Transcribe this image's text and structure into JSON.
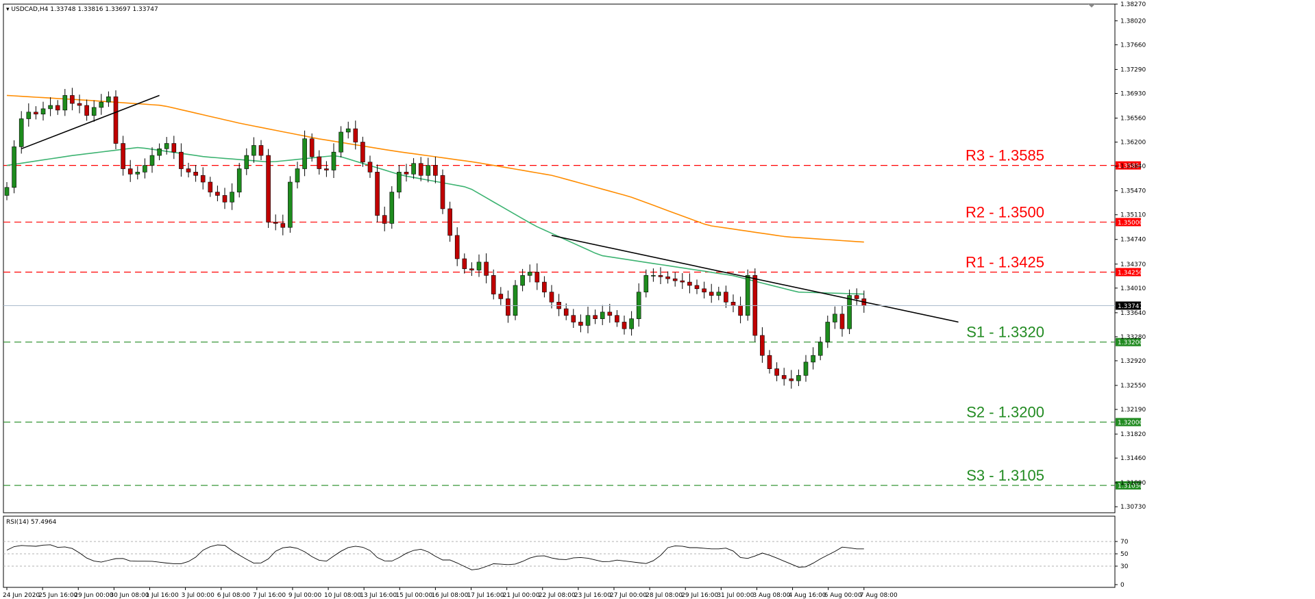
{
  "header": {
    "symbol": "USDCAD,H4",
    "ohlc": "1.33748 1.33816 1.33697 1.33747"
  },
  "rsi_header": "RSI(14) 57.4964",
  "current_price_label": "1.33747",
  "colors": {
    "bull": "#1e8c1e",
    "bear": "#c00000",
    "resistance": "#ff0000",
    "support": "#228b22",
    "ma_fast": "#3cb371",
    "ma_slow": "#ff8c00",
    "trendline": "#000000",
    "current": "#aabbcc"
  },
  "chart_data": [
    {
      "type": "candlestick",
      "title": "",
      "ylim": [
        1.3064,
        1.3827
      ],
      "y_ticks": [
        "1.38270",
        "1.38020",
        "1.37660",
        "1.37290",
        "1.36930",
        "1.36560",
        "1.36200",
        "1.35840",
        "1.35470",
        "1.35110",
        "1.34740",
        "1.34370",
        "1.34010",
        "1.33640",
        "1.33280",
        "1.32920",
        "1.32550",
        "1.32190",
        "1.31820",
        "1.31460",
        "1.31090",
        "1.30730"
      ],
      "x_ticks": [
        "24 Jun 2020",
        "25 Jun 16:00",
        "29 Jun 00:00",
        "30 Jun 08:00",
        "1 Jul 16:00",
        "3 Jul 00:00",
        "6 Jul 08:00",
        "7 Jul 16:00",
        "9 Jul 00:00",
        "10 Jul 08:00",
        "13 Jul 16:00",
        "15 Jul 00:00",
        "16 Jul 08:00",
        "17 Jul 16:00",
        "21 Jul 00:00",
        "22 Jul 08:00",
        "23 Jul 16:00",
        "27 Jul 00:00",
        "28 Jul 08:00",
        "29 Jul 16:00",
        "31 Jul 00:00",
        "3 Aug 08:00",
        "4 Aug 16:00",
        "6 Aug 00:00",
        "7 Aug 08:00"
      ],
      "close_anchors": [
        1.3552,
        1.3613,
        1.3655,
        1.3665,
        1.3662,
        1.367,
        1.3675,
        1.3668,
        1.369,
        1.3678,
        1.3675,
        1.366,
        1.3672,
        1.368,
        1.3688,
        1.3618,
        1.358,
        1.3572,
        1.3575,
        1.3585,
        1.36,
        1.361,
        1.3618,
        1.3605,
        1.358,
        1.3575,
        1.357,
        1.356,
        1.3545,
        1.354,
        1.353,
        1.3545,
        1.358,
        1.36,
        1.3615,
        1.36,
        1.35,
        1.3498,
        1.3492,
        1.356,
        1.358,
        1.3625,
        1.3598,
        1.358,
        1.3578,
        1.3605,
        1.3635,
        1.364,
        1.362,
        1.359,
        1.3575,
        1.351,
        1.3498,
        1.3545,
        1.3575,
        1.3572,
        1.3588,
        1.357,
        1.3585,
        1.357,
        1.352,
        1.348,
        1.3445,
        1.343,
        1.3428,
        1.344,
        1.342,
        1.3392,
        1.3385,
        1.336,
        1.3405,
        1.342,
        1.3425,
        1.341,
        1.3395,
        1.338,
        1.337,
        1.336,
        1.335,
        1.3345,
        1.336,
        1.3355,
        1.3365,
        1.336,
        1.335,
        1.334,
        1.3355,
        1.3395,
        1.342,
        1.342,
        1.3418,
        1.3415,
        1.3412,
        1.341,
        1.3405,
        1.34,
        1.3395,
        1.339,
        1.3395,
        1.338,
        1.3375,
        1.336,
        1.342,
        1.333,
        1.33,
        1.328,
        1.327,
        1.3265,
        1.3262,
        1.327,
        1.329,
        1.33,
        1.332,
        1.335,
        1.3362,
        1.334,
        1.339,
        1.3385,
        1.3375
      ],
      "levels": [
        {
          "name": "R3",
          "value": 1.3585,
          "label": "R3 - 1.3585",
          "tag": "1.35850",
          "kind": "resistance"
        },
        {
          "name": "R2",
          "value": 1.35,
          "label": "R2 - 1.3500",
          "tag": "1.35000",
          "kind": "resistance"
        },
        {
          "name": "R1",
          "value": 1.3425,
          "label": "R1 - 1.3425",
          "tag": "1.34250",
          "kind": "resistance"
        },
        {
          "name": "S1",
          "value": 1.332,
          "label": "S1 - 1.3320",
          "tag": "1.33200",
          "kind": "support"
        },
        {
          "name": "S2",
          "value": 1.32,
          "label": "S2 - 1.3200",
          "tag": "1.32000",
          "kind": "support"
        },
        {
          "name": "S3",
          "value": 1.3105,
          "label": "S3 - 1.3105",
          "tag": "1.31050",
          "kind": "support"
        }
      ],
      "current_price": 1.33747,
      "ma_slow_anchors": [
        1.369,
        1.3683,
        1.3675,
        1.3648,
        1.3625,
        1.3606,
        1.359,
        1.357,
        1.3538,
        1.3495,
        1.3478,
        1.347
      ],
      "ma_fast_anchors": [
        1.3585,
        1.36,
        1.3612,
        1.3598,
        1.359,
        1.36,
        1.357,
        1.3552,
        1.3495,
        1.345,
        1.3435,
        1.342,
        1.3395,
        1.3392
      ],
      "trendlines": [
        {
          "from": [
            2,
            1.361
          ],
          "to": [
            21,
            1.369
          ]
        },
        {
          "from": [
            75,
            1.348
          ],
          "to": [
            131,
            1.335
          ]
        }
      ]
    },
    {
      "type": "line",
      "title": "",
      "ylim": [
        0,
        100
      ],
      "y_ticks": [
        "70",
        "50",
        "30",
        "0"
      ],
      "levels": [
        70,
        50,
        30
      ],
      "anchors": [
        56,
        64,
        63,
        62,
        66,
        60,
        62,
        52,
        40,
        36,
        40,
        44,
        38,
        38,
        38,
        36,
        34,
        34,
        40,
        56,
        64,
        65,
        53,
        43,
        34,
        36,
        54,
        62,
        60,
        52,
        40,
        38,
        51,
        60,
        63,
        58,
        42,
        36,
        44,
        54,
        58,
        52,
        40,
        40,
        32,
        24,
        26,
        34,
        33,
        32,
        38,
        46,
        47,
        42,
        40,
        44,
        44,
        40,
        36,
        40,
        38,
        36,
        34,
        42,
        60,
        64,
        60,
        60,
        58,
        58,
        60,
        44,
        42,
        52,
        47,
        40,
        33,
        26,
        34,
        44,
        52,
        62,
        58,
        58
      ]
    }
  ]
}
